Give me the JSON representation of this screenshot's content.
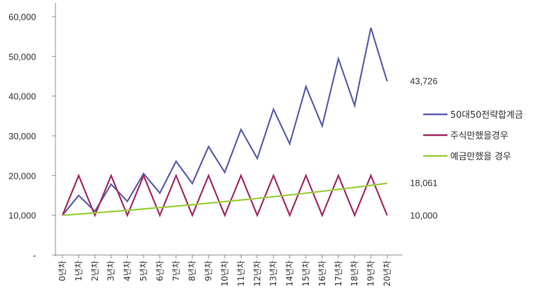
{
  "chart_data": {
    "type": "line",
    "categories": [
      "0년차",
      "1년차",
      "2년차",
      "3년차",
      "4년차",
      "5년차",
      "6년차",
      "7년차",
      "8년차",
      "9년차",
      "10년차",
      "11년차",
      "12년차",
      "13년차",
      "14년차",
      "15년차",
      "16년차",
      "17년차",
      "18년차",
      "19년차",
      "20년차"
    ],
    "series": [
      {
        "name": "50대50전략합계금",
        "color": "#5b5fa8",
        "values": [
          10000,
          15000,
          11000,
          17800,
          13500,
          20500,
          15600,
          23600,
          18000,
          27300,
          20800,
          31600,
          24300,
          36700,
          28000,
          42400,
          32500,
          49400,
          37600,
          57200,
          43726
        ]
      },
      {
        "name": "주식만했을경우",
        "color": "#a32a63",
        "values": [
          10000,
          20000,
          10000,
          20000,
          10000,
          20000,
          10000,
          20000,
          10000,
          20000,
          10000,
          20000,
          10000,
          20000,
          10000,
          20000,
          10000,
          20000,
          10000,
          20000,
          10000
        ]
      },
      {
        "name": "예금만했을 경우",
        "color": "#9acd3c",
        "values": [
          10000,
          10300,
          10609,
          10927,
          11255,
          11593,
          11941,
          12299,
          12668,
          13048,
          13439,
          13842,
          14258,
          14685,
          15126,
          15580,
          16047,
          16528,
          17024,
          17535,
          18061
        ]
      }
    ],
    "y_ticks": [
      "-",
      "10,000",
      "20,000",
      "30,000",
      "40,000",
      "50,000",
      "60,000"
    ],
    "ylim": [
      0,
      60000
    ],
    "end_labels": [
      "43,726",
      "18,061",
      "10,000"
    ],
    "legend_position": "right",
    "grid": false
  }
}
